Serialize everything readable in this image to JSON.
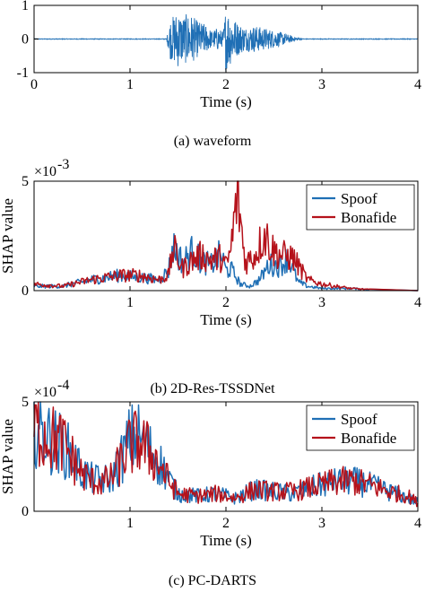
{
  "colors": {
    "spoof": "#1f6fb5",
    "bonafide": "#b5121b",
    "waveform": "#1f6fb5",
    "axis": "#000000"
  },
  "chart_data": [
    {
      "id": "a",
      "type": "line",
      "caption": "(a) waveform",
      "xlabel": "Time (s)",
      "ylabel": "",
      "xlim": [
        0,
        4
      ],
      "ylim": [
        -1,
        1
      ],
      "xticks": [
        "0",
        "1",
        "2",
        "3",
        "4"
      ],
      "yticks": [
        "-1",
        "0",
        "1"
      ],
      "scale_label": "",
      "legend": [],
      "series": [
        {
          "key": "waveform",
          "envelope_t": [
            0,
            1.38,
            1.42,
            1.5,
            1.55,
            1.62,
            1.7,
            1.78,
            1.85,
            1.92,
            1.97,
            2.0,
            2.05,
            2.12,
            2.2,
            2.3,
            2.45,
            2.6,
            2.72,
            2.8,
            4
          ],
          "envelope_amp": [
            0.01,
            0.01,
            0.6,
            0.85,
            0.7,
            0.78,
            0.55,
            0.45,
            0.25,
            0.35,
            0.2,
            1.0,
            0.75,
            0.5,
            0.35,
            0.4,
            0.3,
            0.18,
            0.06,
            0.01,
            0.01
          ]
        }
      ]
    },
    {
      "id": "b",
      "type": "line",
      "caption": "(b) 2D-Res-TSSDNet",
      "xlabel": "Time (s)",
      "ylabel": "SHAP value",
      "xlim": [
        0,
        4
      ],
      "ylim": [
        0,
        5
      ],
      "xticks": [
        "1",
        "2",
        "3",
        "4"
      ],
      "xtick_values": [
        1,
        2,
        3,
        4
      ],
      "yticks": [
        "0",
        "5"
      ],
      "scale_label": "×10",
      "scale_exp": "-3",
      "legend": [
        "Spoof",
        "Bonafide"
      ],
      "legend_position": "top-right",
      "series": [
        {
          "name": "Spoof",
          "color_key": "spoof",
          "x": [
            0,
            0.3,
            0.6,
            0.9,
            1.1,
            1.3,
            1.4,
            1.45,
            1.55,
            1.65,
            1.75,
            1.85,
            1.95,
            2.0,
            2.05,
            2.15,
            2.25,
            2.35,
            2.45,
            2.55,
            2.65,
            2.75,
            2.85,
            3.0,
            3.3,
            3.5
          ],
          "y": [
            0.2,
            0.2,
            0.5,
            0.7,
            0.6,
            0.5,
            0.9,
            2.0,
            1.3,
            1.8,
            1.3,
            1.2,
            1.7,
            0.9,
            1.0,
            0.3,
            0.2,
            0.5,
            1.2,
            1.1,
            1.5,
            0.4,
            0.2,
            0.1,
            0.1,
            0.05
          ]
        },
        {
          "name": "Bonafide",
          "color_key": "bonafide",
          "x": [
            0,
            0.3,
            0.6,
            0.9,
            1.1,
            1.3,
            1.4,
            1.45,
            1.55,
            1.65,
            1.75,
            1.85,
            1.95,
            2.0,
            2.05,
            2.12,
            2.2,
            2.3,
            2.4,
            2.5,
            2.6,
            2.7,
            2.85,
            3.0,
            3.3,
            3.5
          ],
          "y": [
            0.3,
            0.2,
            0.5,
            0.7,
            0.7,
            0.5,
            0.7,
            1.9,
            1.0,
            1.4,
            1.6,
            1.4,
            1.5,
            1.1,
            1.8,
            4.5,
            1.3,
            1.6,
            2.6,
            1.8,
            1.6,
            1.5,
            0.5,
            0.3,
            0.1,
            0.05
          ]
        }
      ]
    },
    {
      "id": "c",
      "type": "line",
      "caption": "(c) PC-DARTS",
      "xlabel": "Time (s)",
      "ylabel": "SHAP value",
      "xlim": [
        0,
        4
      ],
      "ylim": [
        0,
        5
      ],
      "xticks": [
        "1",
        "2",
        "3",
        "4"
      ],
      "xtick_values": [
        1,
        2,
        3,
        4
      ],
      "yticks": [
        "0",
        "5"
      ],
      "scale_label": "×10",
      "scale_exp": "-4",
      "legend": [
        "Spoof",
        "Bonafide"
      ],
      "legend_position": "top-right",
      "series": [
        {
          "name": "Spoof",
          "color_key": "spoof",
          "x": [
            0,
            0.1,
            0.2,
            0.3,
            0.4,
            0.5,
            0.6,
            0.7,
            0.8,
            0.9,
            1.0,
            1.1,
            1.2,
            1.3,
            1.4,
            1.5,
            1.7,
            1.9,
            2.1,
            2.3,
            2.5,
            2.7,
            2.9,
            3.1,
            3.3,
            3.5,
            3.7,
            3.9,
            4.0
          ],
          "y": [
            4.0,
            3.5,
            3.2,
            3.0,
            2.5,
            1.8,
            1.5,
            1.4,
            1.5,
            2.3,
            3.3,
            3.4,
            2.8,
            2.3,
            1.5,
            0.8,
            0.7,
            0.8,
            0.6,
            1.0,
            0.9,
            0.8,
            1.1,
            1.3,
            1.4,
            1.2,
            0.9,
            0.6,
            0.4
          ]
        },
        {
          "name": "Bonafide",
          "color_key": "bonafide",
          "x": [
            0,
            0.1,
            0.2,
            0.3,
            0.4,
            0.5,
            0.6,
            0.7,
            0.8,
            0.9,
            1.0,
            1.1,
            1.2,
            1.3,
            1.4,
            1.5,
            1.7,
            1.9,
            2.1,
            2.3,
            2.5,
            2.7,
            2.9,
            3.1,
            3.3,
            3.5,
            3.7,
            3.9,
            4.0
          ],
          "y": [
            3.8,
            3.6,
            3.3,
            3.1,
            2.4,
            1.7,
            1.4,
            1.3,
            1.5,
            2.2,
            3.0,
            3.2,
            2.7,
            2.2,
            1.4,
            0.8,
            0.7,
            0.8,
            0.6,
            1.0,
            0.9,
            0.9,
            1.1,
            1.3,
            1.4,
            1.2,
            0.9,
            0.7,
            0.4
          ]
        }
      ]
    }
  ]
}
